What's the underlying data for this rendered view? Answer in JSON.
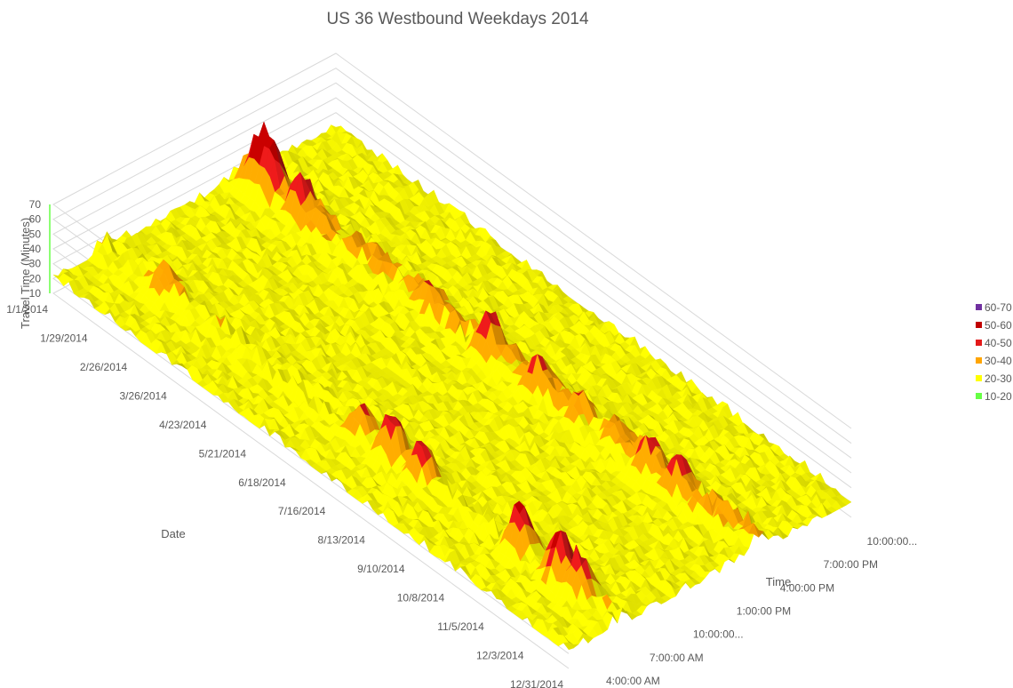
{
  "chart_data": {
    "type": "surface",
    "title": "US 36 Westbound Weekdays 2014",
    "xlabel": "Date",
    "ylabel": "Time",
    "zlabel": "Travel Time (Minutes)",
    "z_ticks": [
      "10",
      "20",
      "30",
      "40",
      "50",
      "60",
      "70"
    ],
    "zlim": [
      10,
      70
    ],
    "date_ticks": [
      "1/1/2014",
      "1/29/2014",
      "2/26/2014",
      "3/26/2014",
      "4/23/2014",
      "5/21/2014",
      "6/18/2014",
      "7/16/2014",
      "8/13/2014",
      "9/10/2014",
      "10/8/2014",
      "11/5/2014",
      "12/3/2014",
      "12/31/2014"
    ],
    "time_ticks": [
      "4:00:00 AM",
      "7:00:00 AM",
      "10:00:00...",
      "1:00:00 PM",
      "4:00:00 PM",
      "7:00:00 PM",
      "10:00:00..."
    ],
    "legend": {
      "placement": "right",
      "entries": [
        {
          "label": "60-70",
          "color": "#7030a0"
        },
        {
          "label": "50-60",
          "color": "#c00000"
        },
        {
          "label": "40-50",
          "color": "#e41a1a"
        },
        {
          "label": "30-40",
          "color": "#ffa500"
        },
        {
          "label": "20-30",
          "color": "#ffff00"
        },
        {
          "label": "10-20",
          "color": "#66ff44"
        }
      ]
    },
    "peaks": [
      {
        "date": "1/15/2014",
        "time": "5:00:00 PM",
        "value": 66
      },
      {
        "date": "1/22/2014",
        "time": "5:00:00 PM",
        "value": 62
      },
      {
        "date": "2/12/2014",
        "time": "5:00:00 PM",
        "value": 56
      },
      {
        "date": "2/26/2014",
        "time": "5:00:00 PM",
        "value": 38
      },
      {
        "date": "3/26/2014",
        "time": "5:00:00 PM",
        "value": 34
      },
      {
        "date": "5/14/2014",
        "time": "5:00:00 PM",
        "value": 44
      },
      {
        "date": "6/25/2014",
        "time": "5:00:00 PM",
        "value": 55
      },
      {
        "date": "7/30/2014",
        "time": "5:00:00 PM",
        "value": 50
      },
      {
        "date": "8/27/2014",
        "time": "5:00:00 PM",
        "value": 44
      },
      {
        "date": "9/24/2014",
        "time": "5:00:00 PM",
        "value": 40
      },
      {
        "date": "10/15/2014",
        "time": "5:00:00 PM",
        "value": 48
      },
      {
        "date": "11/5/2014",
        "time": "5:00:00 PM",
        "value": 50
      },
      {
        "date": "2/12/2014",
        "time": "7:30:00 AM",
        "value": 42
      },
      {
        "date": "3/5/2014",
        "time": "7:30:00 AM",
        "value": 30
      },
      {
        "date": "7/2/2014",
        "time": "7:30:00 AM",
        "value": 46
      },
      {
        "date": "7/23/2014",
        "time": "7:30:00 AM",
        "value": 55
      },
      {
        "date": "8/13/2014",
        "time": "7:30:00 AM",
        "value": 50
      },
      {
        "date": "10/22/2014",
        "time": "7:30:00 AM",
        "value": 56
      },
      {
        "date": "11/19/2014",
        "time": "7:30:00 AM",
        "value": 60
      },
      {
        "date": "12/3/2014",
        "time": "7:30:00 AM",
        "value": 54
      }
    ]
  }
}
